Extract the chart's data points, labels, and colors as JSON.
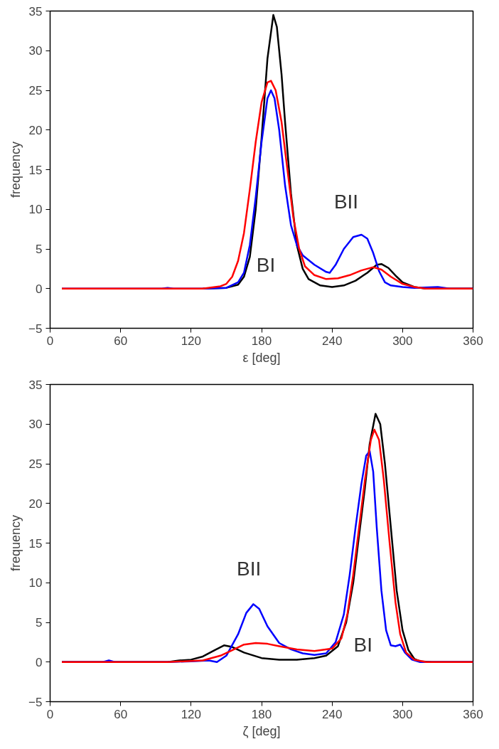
{
  "chart_data": [
    {
      "type": "line",
      "xlabel": "ε [deg]",
      "ylabel": "frequency",
      "xlim": [
        0,
        360
      ],
      "ylim": [
        -5,
        35
      ],
      "xticks": [
        0,
        60,
        120,
        180,
        240,
        300,
        360
      ],
      "yticks": [
        -5,
        0,
        5,
        10,
        15,
        20,
        25,
        30,
        35
      ],
      "grid": false,
      "annotations": [
        "BII",
        "BI"
      ],
      "series": [
        {
          "color": "#000000",
          "x": [
            130,
            150,
            160,
            165,
            170,
            175,
            180,
            185,
            190,
            193,
            197,
            200,
            205,
            210,
            215,
            220,
            230,
            240,
            250,
            260,
            270,
            278,
            282,
            288,
            295,
            300,
            310,
            320,
            360
          ],
          "values": [
            0,
            0.1,
            0.5,
            1.5,
            4,
            10,
            19,
            29,
            34.5,
            33,
            27,
            21,
            12,
            5.5,
            2.5,
            1.2,
            0.4,
            0.2,
            0.4,
            1.0,
            2.0,
            3.0,
            3.1,
            2.6,
            1.5,
            0.8,
            0.2,
            0,
            0
          ]
        },
        {
          "color": "#0000ff",
          "x": [
            10,
            95,
            100,
            105,
            130,
            150,
            160,
            165,
            170,
            175,
            180,
            185,
            188,
            191,
            195,
            200,
            205,
            210,
            215,
            225,
            235,
            238,
            243,
            250,
            258,
            265,
            270,
            275,
            280,
            285,
            290,
            300,
            310,
            330,
            340,
            360
          ],
          "values": [
            0,
            0,
            0.1,
            0,
            0,
            0.1,
            0.8,
            2,
            5.5,
            11.5,
            18.5,
            24,
            25,
            24,
            20,
            13,
            8,
            5.5,
            4.2,
            3,
            2.1,
            2,
            3,
            5,
            6.5,
            6.8,
            6.3,
            4.5,
            2.2,
            0.8,
            0.4,
            0.2,
            0.1,
            0.2,
            0,
            0
          ]
        },
        {
          "color": "#ff0000",
          "x": [
            10,
            100,
            130,
            145,
            150,
            155,
            160,
            165,
            170,
            175,
            180,
            185,
            188,
            192,
            197,
            202,
            207,
            212,
            217,
            225,
            235,
            245,
            255,
            265,
            275,
            282,
            290,
            300,
            310,
            320,
            360
          ],
          "values": [
            0,
            0,
            0,
            0.3,
            0.6,
            1.5,
            3.5,
            7,
            12.5,
            18.5,
            23.5,
            26,
            26.2,
            25,
            21,
            15,
            9,
            5,
            2.8,
            1.7,
            1.2,
            1.3,
            1.7,
            2.3,
            2.7,
            2.4,
            1.5,
            0.6,
            0.2,
            0,
            0
          ]
        }
      ]
    },
    {
      "type": "line",
      "xlabel": "ζ [deg]",
      "ylabel": "frequency",
      "xlim": [
        0,
        360
      ],
      "ylim": [
        -5,
        35
      ],
      "xticks": [
        0,
        60,
        120,
        180,
        240,
        300,
        360
      ],
      "yticks": [
        -5,
        0,
        5,
        10,
        15,
        20,
        25,
        30,
        35
      ],
      "grid": false,
      "annotations": [
        "BII",
        "BI"
      ],
      "series": [
        {
          "color": "#000000",
          "x": [
            10,
            100,
            110,
            120,
            130,
            140,
            148,
            155,
            165,
            180,
            195,
            210,
            225,
            235,
            245,
            252,
            258,
            263,
            268,
            272,
            277,
            281,
            285,
            290,
            295,
            300,
            305,
            310,
            315,
            325,
            360
          ],
          "values": [
            0,
            0,
            0.2,
            0.3,
            0.7,
            1.5,
            2.1,
            1.9,
            1.2,
            0.5,
            0.3,
            0.3,
            0.5,
            0.8,
            2,
            5,
            10,
            16,
            22,
            27.5,
            31.3,
            30,
            25,
            17,
            9,
            4,
            1.5,
            0.4,
            0.1,
            0,
            0
          ]
        },
        {
          "color": "#0000ff",
          "x": [
            10,
            45,
            50,
            55,
            100,
            120,
            135,
            142,
            150,
            160,
            167,
            173,
            178,
            185,
            195,
            205,
            215,
            225,
            235,
            243,
            250,
            255,
            260,
            265,
            269,
            272,
            275,
            278,
            282,
            286,
            290,
            294,
            298,
            302,
            308,
            315,
            360
          ],
          "values": [
            0,
            0,
            0.2,
            0,
            0,
            0.1,
            0.2,
            0,
            0.8,
            3.5,
            6.2,
            7.3,
            6.7,
            4.5,
            2.4,
            1.6,
            1.1,
            0.9,
            1.1,
            2.5,
            6,
            11,
            17,
            22.5,
            26,
            26.6,
            24,
            17,
            9,
            4,
            2.1,
            2,
            2.2,
            1.2,
            0.3,
            0,
            0
          ]
        },
        {
          "color": "#ff0000",
          "x": [
            10,
            100,
            130,
            145,
            155,
            165,
            175,
            185,
            195,
            210,
            225,
            240,
            248,
            253,
            258,
            263,
            268,
            273,
            276,
            280,
            284,
            289,
            294,
            298,
            303,
            310,
            320,
            360
          ],
          "values": [
            0,
            0,
            0.2,
            0.8,
            1.5,
            2.2,
            2.4,
            2.3,
            2,
            1.6,
            1.4,
            1.7,
            3,
            6,
            11,
            17,
            23,
            28,
            29.3,
            28,
            23,
            15,
            7.5,
            3.5,
            1.2,
            0.3,
            0,
            0
          ]
        }
      ]
    }
  ]
}
